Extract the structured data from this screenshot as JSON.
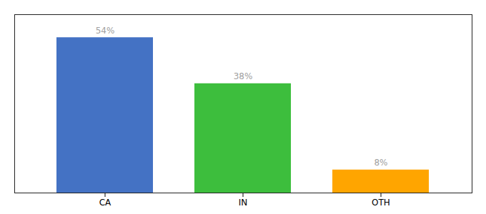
{
  "chart_data": {
    "type": "bar",
    "categories": [
      "CA",
      "IN",
      "OTH"
    ],
    "values": [
      54,
      38,
      8
    ],
    "value_labels": [
      "54%",
      "38%",
      "8%"
    ],
    "colors": [
      "#4472C4",
      "#3DBE3D",
      "#FFA500"
    ],
    "ylim": [
      0,
      62
    ],
    "data_labels": true,
    "tick_labels": "x",
    "grid": false
  }
}
